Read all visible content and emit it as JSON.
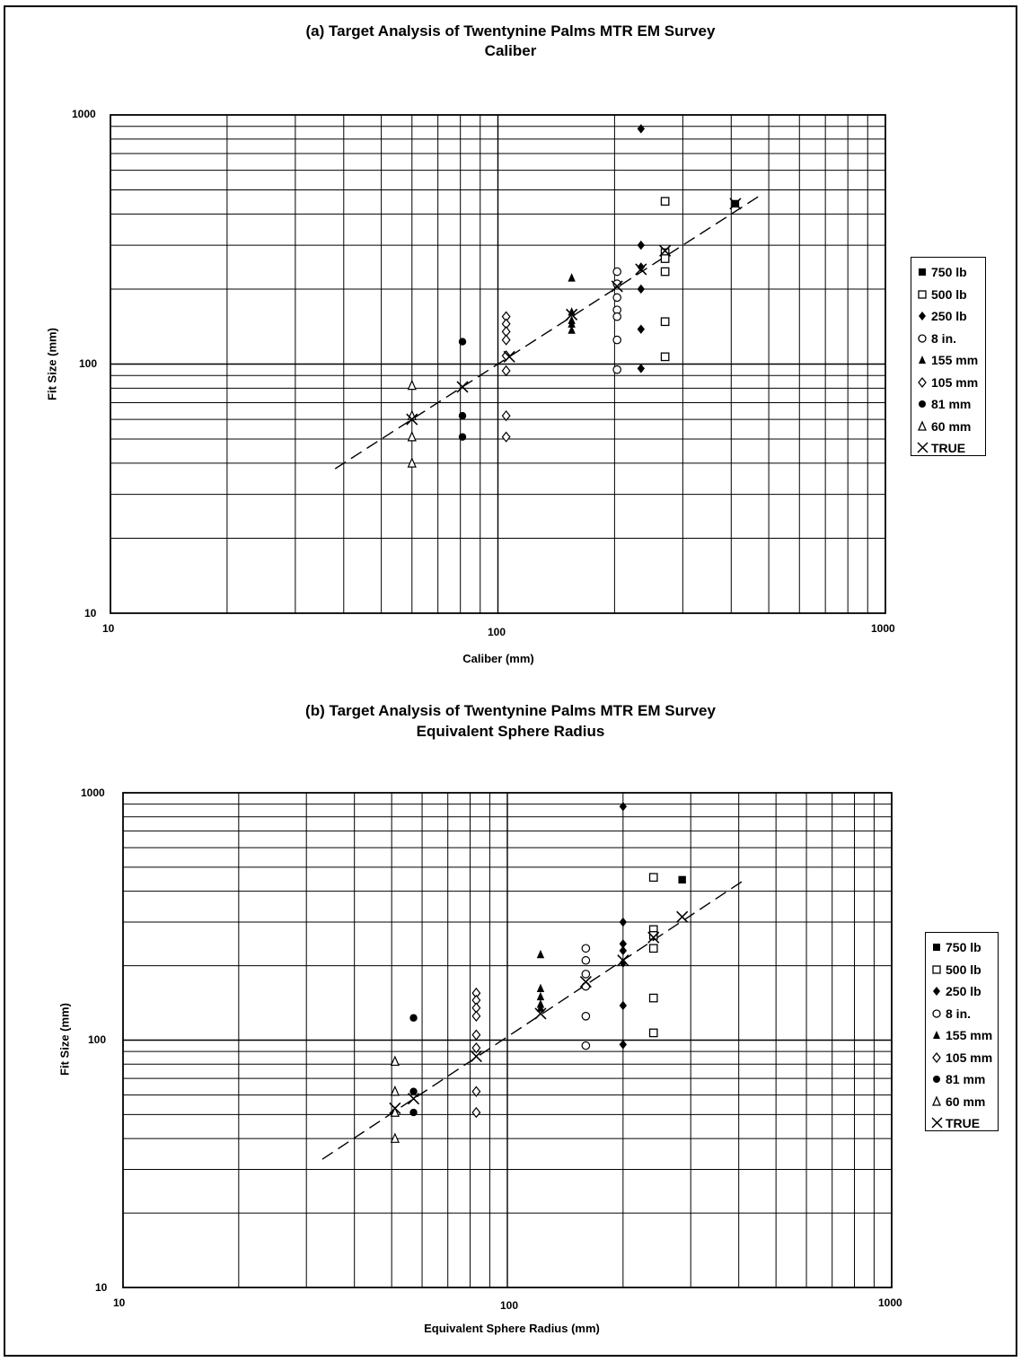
{
  "colors": {
    "ink": "#000000",
    "background": "#ffffff"
  },
  "legend_entries": [
    {
      "label": "750 lb",
      "marker": "square-filled"
    },
    {
      "label": "500 lb",
      "marker": "square-open"
    },
    {
      "label": "250 lb",
      "marker": "diamond-filled"
    },
    {
      "label": "8 in.",
      "marker": "circle-open"
    },
    {
      "label": "155 mm",
      "marker": "triangle-filled"
    },
    {
      "label": "105 mm",
      "marker": "diamond-open"
    },
    {
      "label": "81 mm",
      "marker": "circle-filled"
    },
    {
      "label": "60 mm",
      "marker": "triangle-open"
    },
    {
      "label": "TRUE",
      "marker": "x"
    }
  ],
  "chart_data": [
    {
      "type": "scatter",
      "title": "(a) Target Analysis of Twentynine Palms MTR EM Survey",
      "subtitle": "Caliber",
      "xlabel": "Caliber (mm)",
      "ylabel": "Fit Size (mm)",
      "xscale": "log",
      "yscale": "log",
      "xlim": [
        10,
        1000
      ],
      "ylim": [
        10,
        1000
      ],
      "xticks": [
        "10",
        "100",
        "1000"
      ],
      "yticks": [
        "10",
        "100",
        "1000"
      ],
      "grid": true,
      "legend_position": "right",
      "trend_line": {
        "style": "dashed",
        "from": [
          38,
          38
        ],
        "to": [
          480,
          480
        ]
      },
      "series": [
        {
          "name": "750 lb",
          "marker": "square-filled",
          "points": [
            [
              410,
              440
            ]
          ]
        },
        {
          "name": "500 lb",
          "marker": "square-open",
          "points": [
            [
              270,
              450
            ],
            [
              270,
              280
            ],
            [
              270,
              265
            ],
            [
              270,
              235
            ],
            [
              270,
              148
            ],
            [
              270,
              107
            ]
          ]
        },
        {
          "name": "250 lb",
          "marker": "diamond-filled",
          "points": [
            [
              234,
              880
            ],
            [
              234,
              300
            ],
            [
              234,
              245
            ],
            [
              234,
              200
            ],
            [
              234,
              138
            ],
            [
              234,
              96
            ]
          ]
        },
        {
          "name": "8 in.",
          "marker": "circle-open",
          "points": [
            [
              203,
              235
            ],
            [
              203,
              210
            ],
            [
              203,
              185
            ],
            [
              203,
              165
            ],
            [
              203,
              155
            ],
            [
              203,
              125
            ],
            [
              203,
              95
            ]
          ]
        },
        {
          "name": "155 mm",
          "marker": "triangle-filled",
          "points": [
            [
              155,
              222
            ],
            [
              155,
              162
            ],
            [
              155,
              150
            ],
            [
              155,
              145
            ],
            [
              155,
              137
            ]
          ]
        },
        {
          "name": "105 mm",
          "marker": "diamond-open",
          "points": [
            [
              105,
              155
            ],
            [
              105,
              145
            ],
            [
              105,
              135
            ],
            [
              105,
              125
            ],
            [
              105,
              108
            ],
            [
              105,
              94
            ],
            [
              105,
              62
            ],
            [
              105,
              51
            ]
          ]
        },
        {
          "name": "81 mm",
          "marker": "circle-filled",
          "points": [
            [
              81,
              123
            ],
            [
              81,
              62
            ],
            [
              81,
              51
            ]
          ]
        },
        {
          "name": "60 mm",
          "marker": "triangle-open",
          "points": [
            [
              60,
              82
            ],
            [
              60,
              62
            ],
            [
              60,
              51
            ],
            [
              60,
              40
            ]
          ]
        },
        {
          "name": "TRUE",
          "marker": "x",
          "points": [
            [
              60,
              60
            ],
            [
              81,
              81
            ],
            [
              107,
              107
            ],
            [
              155,
              158
            ],
            [
              203,
              205
            ],
            [
              234,
              240
            ],
            [
              270,
              285
            ],
            [
              410,
              440
            ]
          ]
        }
      ]
    },
    {
      "type": "scatter",
      "title": "(b) Target Analysis of Twentynine Palms MTR EM Survey",
      "subtitle": "Equivalent Sphere Radius",
      "xlabel": "Equivalent Sphere Radius (mm)",
      "ylabel": "Fit Size (mm)",
      "xscale": "log",
      "yscale": "log",
      "xlim": [
        10,
        1000
      ],
      "ylim": [
        10,
        1000
      ],
      "xticks": [
        "10",
        "100",
        "1000"
      ],
      "yticks": [
        "10",
        "100",
        "1000"
      ],
      "grid": true,
      "legend_position": "right",
      "trend_line": {
        "style": "dashed",
        "from": [
          33,
          33
        ],
        "to": [
          410,
          440
        ]
      },
      "series": [
        {
          "name": "750 lb",
          "marker": "square-filled",
          "points": [
            [
              285,
              445
            ]
          ]
        },
        {
          "name": "500 lb",
          "marker": "square-open",
          "points": [
            [
              240,
              455
            ],
            [
              240,
              280
            ],
            [
              240,
              265
            ],
            [
              240,
              235
            ],
            [
              240,
              148
            ],
            [
              240,
              107
            ]
          ]
        },
        {
          "name": "250 lb",
          "marker": "diamond-filled",
          "points": [
            [
              200,
              880
            ],
            [
              200,
              300
            ],
            [
              200,
              245
            ],
            [
              200,
              230
            ],
            [
              200,
              205
            ],
            [
              200,
              138
            ],
            [
              200,
              96
            ]
          ]
        },
        {
          "name": "8 in.",
          "marker": "circle-open",
          "points": [
            [
              160,
              235
            ],
            [
              160,
              210
            ],
            [
              160,
              185
            ],
            [
              160,
              165
            ],
            [
              160,
              125
            ],
            [
              160,
              95
            ]
          ]
        },
        {
          "name": "155 mm",
          "marker": "triangle-filled",
          "points": [
            [
              122,
              222
            ],
            [
              122,
              162
            ],
            [
              122,
              150
            ],
            [
              122,
              140
            ],
            [
              122,
              135
            ]
          ]
        },
        {
          "name": "105 mm",
          "marker": "diamond-open",
          "points": [
            [
              83,
              155
            ],
            [
              83,
              145
            ],
            [
              83,
              135
            ],
            [
              83,
              125
            ],
            [
              83,
              105
            ],
            [
              83,
              93
            ],
            [
              83,
              62
            ],
            [
              83,
              51
            ]
          ]
        },
        {
          "name": "81 mm",
          "marker": "circle-filled",
          "points": [
            [
              57,
              123
            ],
            [
              57,
              62
            ],
            [
              57,
              51
            ]
          ]
        },
        {
          "name": "60 mm",
          "marker": "triangle-open",
          "points": [
            [
              51,
              82
            ],
            [
              51,
              62
            ],
            [
              51,
              51
            ],
            [
              51,
              40
            ]
          ]
        },
        {
          "name": "TRUE",
          "marker": "x",
          "points": [
            [
              51,
              53
            ],
            [
              57,
              58
            ],
            [
              83,
              86
            ],
            [
              122,
              128
            ],
            [
              160,
              172
            ],
            [
              200,
              210
            ],
            [
              240,
              260
            ],
            [
              285,
              315
            ]
          ]
        }
      ]
    }
  ]
}
